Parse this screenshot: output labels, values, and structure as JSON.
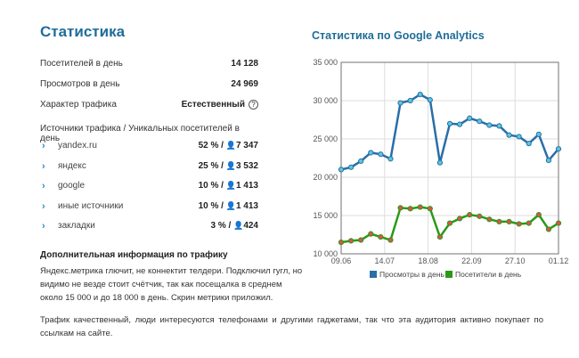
{
  "title": "Статистика",
  "stats": [
    {
      "label": "Посетителей в день",
      "value": "14 128"
    },
    {
      "label": "Просмотров в день",
      "value": "24 969"
    },
    {
      "label": "Характер трафика",
      "value": "Естественный"
    }
  ],
  "help_icon": "?",
  "sources_title": "Источники трафика / Уникальных посетителей в день",
  "sources": [
    {
      "name": "yandex.ru",
      "pct": "52 % /",
      "count": "7 347"
    },
    {
      "name": "яндекс",
      "pct": "25 % /",
      "count": "3 532"
    },
    {
      "name": "google",
      "pct": "10 % /",
      "count": "1 413"
    },
    {
      "name": "иные источники",
      "pct": "10 % /",
      "count": "1 413"
    },
    {
      "name": "закладки",
      "pct": "3 % /",
      "count": "424"
    }
  ],
  "extra_title": "Дополнительная информация по трафику",
  "extra_text": "Яндекс.метрика глючит, не коннектит телдери. Подключил гугл, но видимо не везде стоит счётчик, так как посещалка в среднем около 15 000 и до 18 000 в день. Скрин метрики приложил.",
  "footer_text": "Трафик качественный, люди интересуются телефонами и другими гаджетами, так что эта аудитория активно покупает по ссылкам на сайте.",
  "chart_title": "Статистика по Google Analytics",
  "colors": {
    "views": "#2a6ea8",
    "visitors": "#2a9a16"
  },
  "chart_data": {
    "type": "line",
    "title": "Статистика по Google Analytics",
    "ylim": [
      10000,
      35000
    ],
    "yticks": [
      "10 000",
      "15 000",
      "20 000",
      "25 000",
      "30 000",
      "35 000"
    ],
    "xticks": [
      "09.06",
      "14.07",
      "18.08",
      "22.09",
      "27.10",
      "01.12"
    ],
    "series": [
      {
        "name": "Просмотры в день",
        "values": [
          21000,
          21300,
          22100,
          23200,
          23000,
          22400,
          29700,
          30000,
          30800,
          30100,
          21900,
          27000,
          26900,
          27700,
          27300,
          26800,
          26700,
          25500,
          25300,
          24400,
          25600,
          22200,
          23700
        ]
      },
      {
        "name": "Посетители в день",
        "values": [
          11500,
          11700,
          11800,
          12600,
          12200,
          11800,
          16000,
          15900,
          16100,
          15900,
          12200,
          14000,
          14600,
          15100,
          14900,
          14500,
          14200,
          14200,
          13900,
          14000,
          15100,
          13200,
          14000
        ]
      }
    ]
  }
}
